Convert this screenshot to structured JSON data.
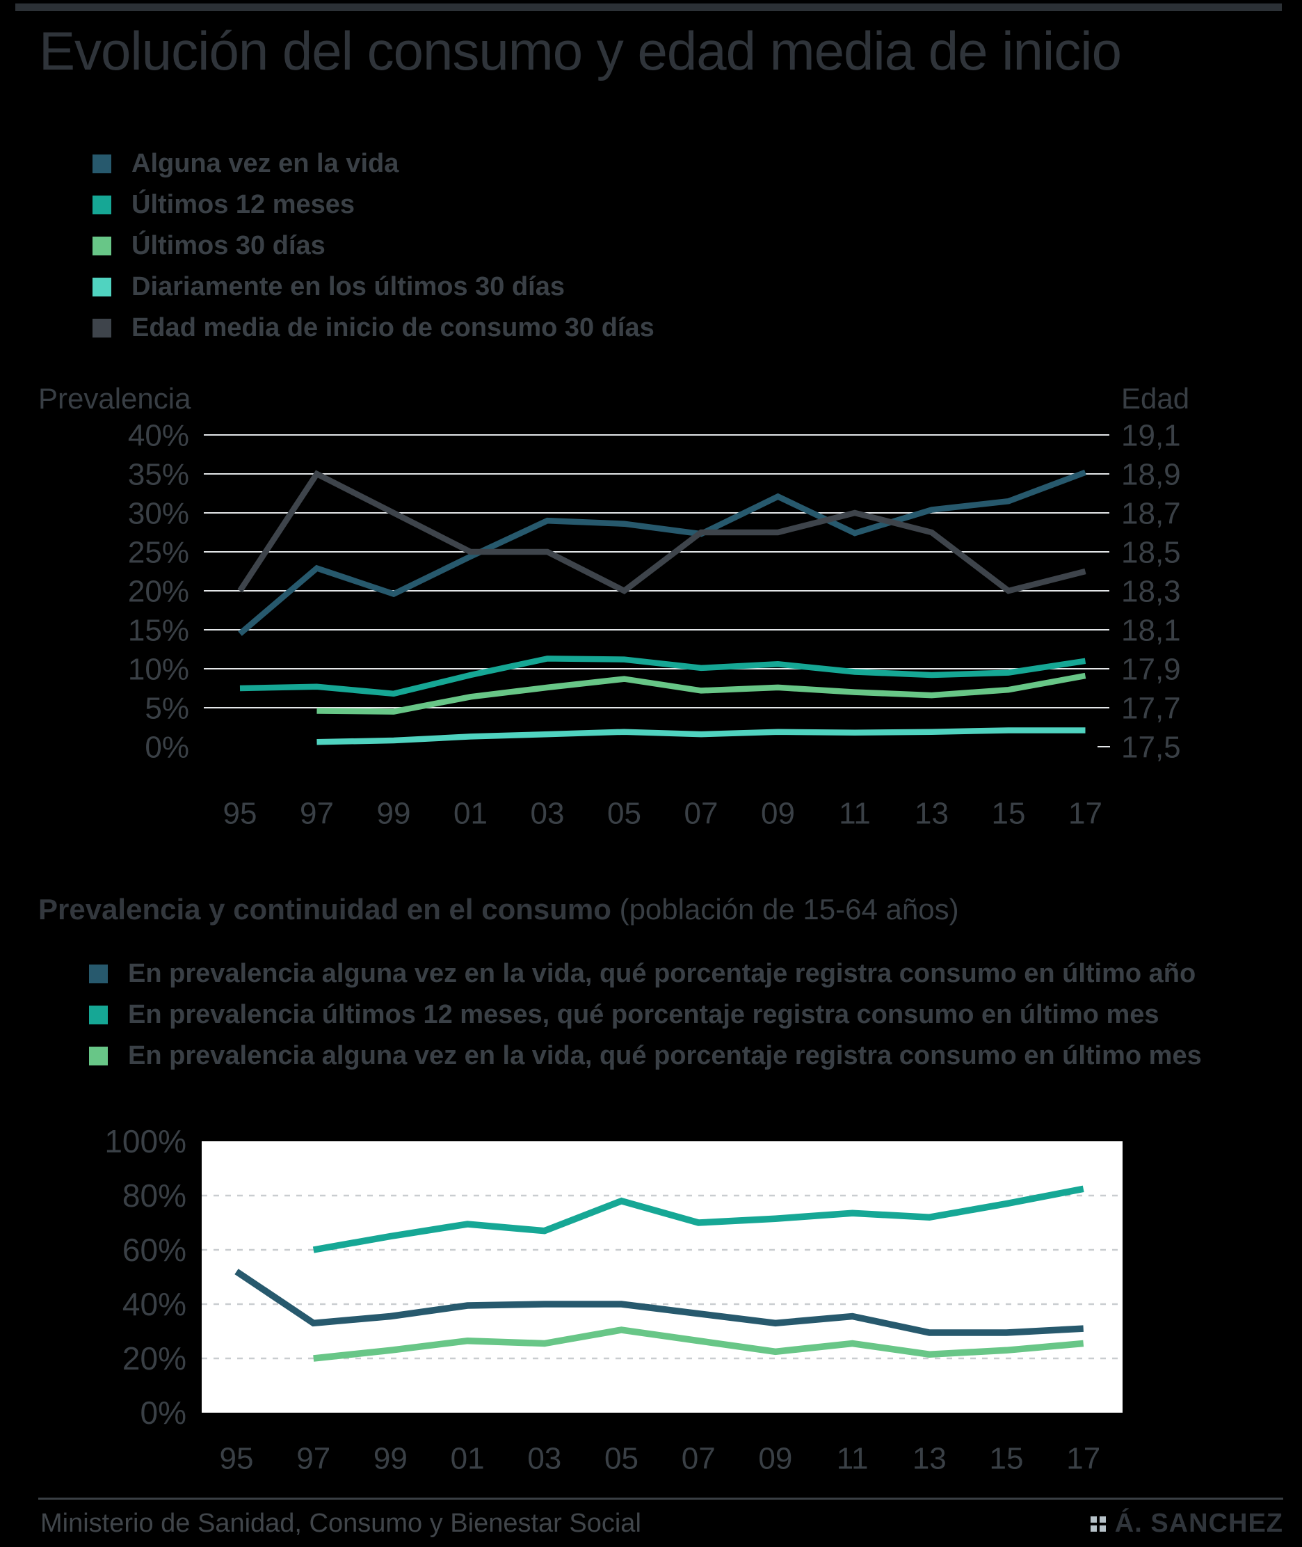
{
  "header": {
    "title": "Evolución del consumo y edad media de inicio"
  },
  "section2": {
    "title_bold": "Prevalencia y continuidad en el consumo",
    "title_note": "(población de 15-64 años)"
  },
  "footer": {
    "source": "Ministerio de Sanidad, Consumo y Bienestar Social",
    "credit": "Á. SANCHEZ"
  },
  "colors": {
    "lifetime": "#27596d",
    "last12": "#16a795",
    "last30": "#68c687",
    "daily": "#50d3c0",
    "age": "#3e444b",
    "grid_dark_bg": "#e4e7e9",
    "grid_white_bg": "#c9cdd0",
    "plot2_background": "#ffffff",
    "page_background": "#000000",
    "credit_squares": "#b7c2c9"
  },
  "chart_data": [
    {
      "type": "line",
      "x_labels": [
        "95",
        "97",
        "99",
        "01",
        "03",
        "05",
        "07",
        "09",
        "11",
        "13",
        "15",
        "17"
      ],
      "y_left": {
        "label": "Prevalencia",
        "tick_values": [
          40,
          35,
          30,
          25,
          20,
          15,
          10,
          5,
          0
        ],
        "tick_labels": [
          "40%",
          "35%",
          "30%",
          "25%",
          "20%",
          "15%",
          "10%",
          "5%",
          "0%"
        ],
        "lim": [
          0,
          40
        ]
      },
      "y_right": {
        "label": "Edad",
        "tick_values": [
          19.1,
          18.9,
          18.7,
          18.5,
          18.3,
          18.1,
          17.9,
          17.7,
          17.5
        ],
        "tick_labels": [
          "19,1",
          "18,9",
          "18,7",
          "18,5",
          "18,3",
          "18,1",
          "17,9",
          "17,7",
          "17,5"
        ],
        "lim": [
          17.5,
          19.1
        ]
      },
      "grid": true,
      "series": [
        {
          "name": "Alguna vez en la vida",
          "color": "lifetime",
          "axis": "left",
          "values": [
            14.5,
            22.9,
            19.6,
            24.4,
            29.0,
            28.6,
            27.3,
            32.1,
            27.4,
            30.4,
            31.5,
            35.2
          ]
        },
        {
          "name": "Últimos 12 meses",
          "color": "last12",
          "axis": "left",
          "values": [
            7.5,
            7.7,
            6.8,
            9.2,
            11.3,
            11.2,
            10.1,
            10.6,
            9.6,
            9.2,
            9.5,
            11.0
          ]
        },
        {
          "name": "Últimos 30 días",
          "color": "last30",
          "axis": "left",
          "values": [
            null,
            4.6,
            4.5,
            6.4,
            7.6,
            8.7,
            7.2,
            7.6,
            7.0,
            6.6,
            7.3,
            9.1
          ]
        },
        {
          "name": "Diariamente en los últimos 30 días",
          "color": "daily",
          "axis": "left",
          "values": [
            null,
            0.6,
            0.8,
            1.3,
            1.6,
            1.9,
            1.6,
            1.9,
            1.8,
            1.9,
            2.1,
            2.1
          ]
        },
        {
          "name": "Edad media de inicio de consumo 30 días",
          "color": "age",
          "axis": "right",
          "values": [
            18.3,
            18.9,
            18.7,
            18.5,
            18.5,
            18.3,
            18.6,
            18.6,
            18.7,
            18.6,
            18.3,
            18.4
          ]
        }
      ]
    },
    {
      "type": "line",
      "x_labels": [
        "95",
        "97",
        "99",
        "01",
        "03",
        "05",
        "07",
        "09",
        "11",
        "13",
        "15",
        "17"
      ],
      "y_ticks": {
        "tick_values": [
          100,
          80,
          60,
          40,
          20,
          0
        ],
        "tick_labels": [
          "100%",
          "80%",
          "60%",
          "40%",
          "20%",
          "0%"
        ],
        "lim": [
          0,
          100
        ]
      },
      "grid": true,
      "legend_position": "top",
      "series": [
        {
          "name": "En prevalencia alguna vez en la vida, qué porcentaje registra consumo en último año",
          "color": "lifetime",
          "values": [
            52,
            33,
            35.5,
            39.5,
            40,
            40,
            36.5,
            33,
            35.5,
            29.5,
            29.5,
            31
          ]
        },
        {
          "name": "En prevalencia últimos 12 meses, qué porcentaje registra consumo en último mes",
          "color": "last12",
          "values": [
            null,
            60,
            65,
            69.5,
            67,
            78,
            70,
            71.5,
            73.5,
            72,
            77,
            82.5
          ]
        },
        {
          "name": "En prevalencia alguna vez en la vida, qué porcentaje registra consumo en último mes",
          "color": "last30",
          "values": [
            null,
            20,
            23,
            26.5,
            25.5,
            30.5,
            26.5,
            22.5,
            25.5,
            21.5,
            23,
            25.5
          ]
        }
      ]
    }
  ]
}
